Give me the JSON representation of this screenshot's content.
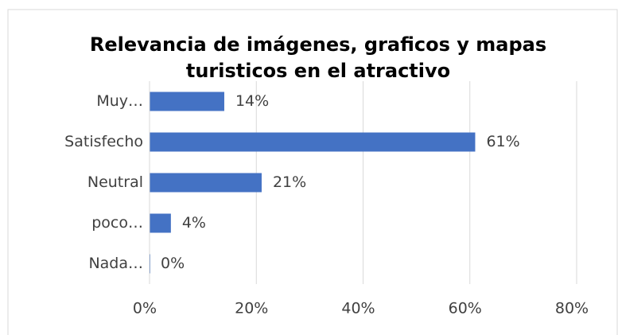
{
  "chart_data": {
    "type": "bar",
    "orientation": "horizontal",
    "title": "Relevancia de imágenes, graficos y mapas turisticos en el atractivo",
    "categories": [
      "Muy…",
      "Satisfecho",
      "Neutral",
      "poco…",
      "Nada…"
    ],
    "values": [
      14,
      61,
      21,
      4,
      0
    ],
    "value_labels": [
      "14%",
      "61%",
      "21%",
      "4%",
      "0%"
    ],
    "color": "#4472c4",
    "xlim": [
      0,
      80
    ],
    "xticks": [
      {
        "value": 0,
        "label": "0%"
      },
      {
        "value": 20,
        "label": "20%"
      },
      {
        "value": 40,
        "label": "40%"
      },
      {
        "value": 60,
        "label": "60%"
      },
      {
        "value": 80,
        "label": "80%"
      }
    ],
    "grid": true
  }
}
